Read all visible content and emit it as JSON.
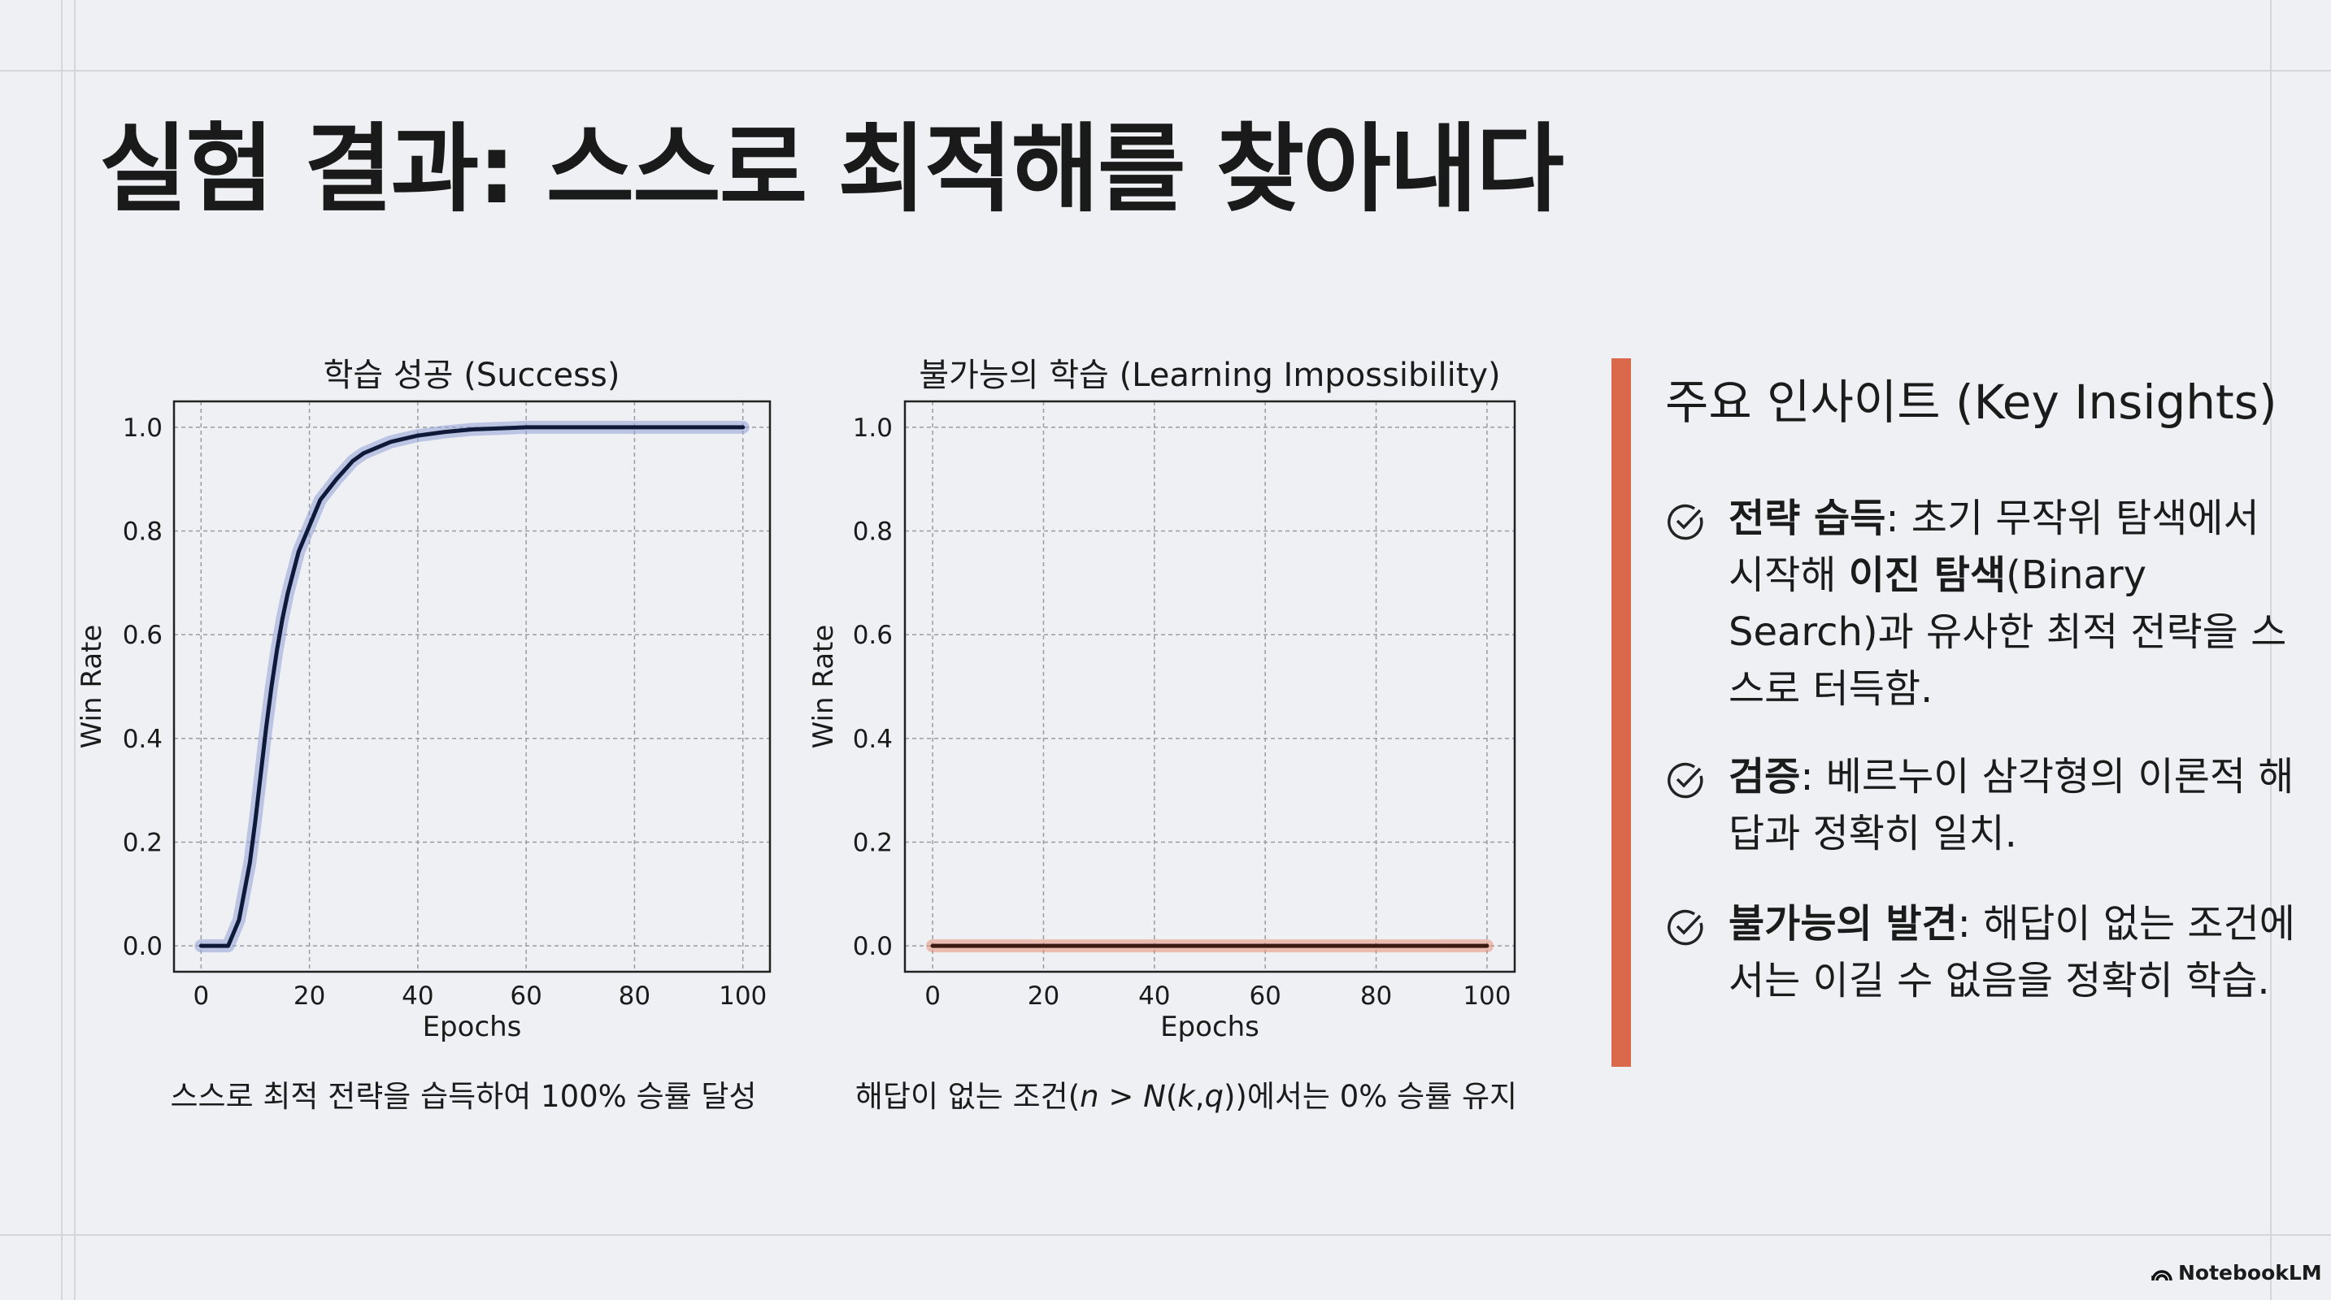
{
  "slide": {
    "title": "실험 결과: 스스로 최적해를 찾아내다",
    "accent_color": "#d9694a"
  },
  "chart_data": [
    {
      "type": "line",
      "title": "학습 성공 (Success)",
      "xlabel": "Epochs",
      "ylabel": "Win Rate",
      "xlim": [
        -5,
        105
      ],
      "ylim": [
        -0.05,
        1.05
      ],
      "xticks": [
        "0",
        "20",
        "40",
        "60",
        "80",
        "100"
      ],
      "yticks": [
        "0.0",
        "0.2",
        "0.4",
        "0.6",
        "0.8",
        "1.0"
      ],
      "grid": true,
      "line_color": "#0f1a3a",
      "band_color": "#8fa3d6",
      "x": [
        0,
        5,
        7,
        9,
        10,
        11,
        12,
        13,
        14,
        15,
        16,
        18,
        20,
        22,
        25,
        28,
        30,
        35,
        40,
        45,
        50,
        60,
        70,
        80,
        100
      ],
      "y": [
        0,
        0,
        0.05,
        0.16,
        0.24,
        0.33,
        0.42,
        0.5,
        0.57,
        0.63,
        0.68,
        0.76,
        0.81,
        0.86,
        0.9,
        0.935,
        0.95,
        0.972,
        0.984,
        0.991,
        0.996,
        1.0,
        1.0,
        1.0,
        1.0
      ],
      "caption": "스스로 최적 전략을 습득하여 100% 승률 달성"
    },
    {
      "type": "line",
      "title": "불가능의 학습 (Learning Impossibility)",
      "xlabel": "Epochs",
      "ylabel": "Win Rate",
      "xlim": [
        -5,
        105
      ],
      "ylim": [
        -0.05,
        1.05
      ],
      "xticks": [
        "0",
        "20",
        "40",
        "60",
        "80",
        "100"
      ],
      "yticks": [
        "0.0",
        "0.2",
        "0.4",
        "0.6",
        "0.8",
        "1.0"
      ],
      "grid": true,
      "line_color": "#3a1a12",
      "band_color": "#e4907a",
      "x": [
        0,
        100
      ],
      "y": [
        0,
        0
      ],
      "caption_parts": [
        "해답이 없는 조건(",
        "n",
        " > ",
        "N",
        "(",
        "k",
        ",",
        "q",
        "))에서는 0% 승률 유지"
      ]
    }
  ],
  "insights": {
    "title": "주요 인사이트 (Key Insights)",
    "icon": "check-circle-icon",
    "items": [
      {
        "bold": "전략 습득",
        "t1": ": 초기 무작위 탐색에서 시작해 ",
        "bold2": "이진 탐색",
        "t2": "(Binary Search)과 유사한 최적 전략을 스스로 터득함."
      },
      {
        "bold": "검증",
        "t1": ": 베르누이 삼각형의 이론적 해답과 정확히 일치."
      },
      {
        "bold": "불가능의 발견",
        "t1": ": 해답이 없는 조건에서는 이길 수 없음을 정확히 학습."
      }
    ]
  },
  "footer": {
    "brand": "NotebookLM"
  }
}
